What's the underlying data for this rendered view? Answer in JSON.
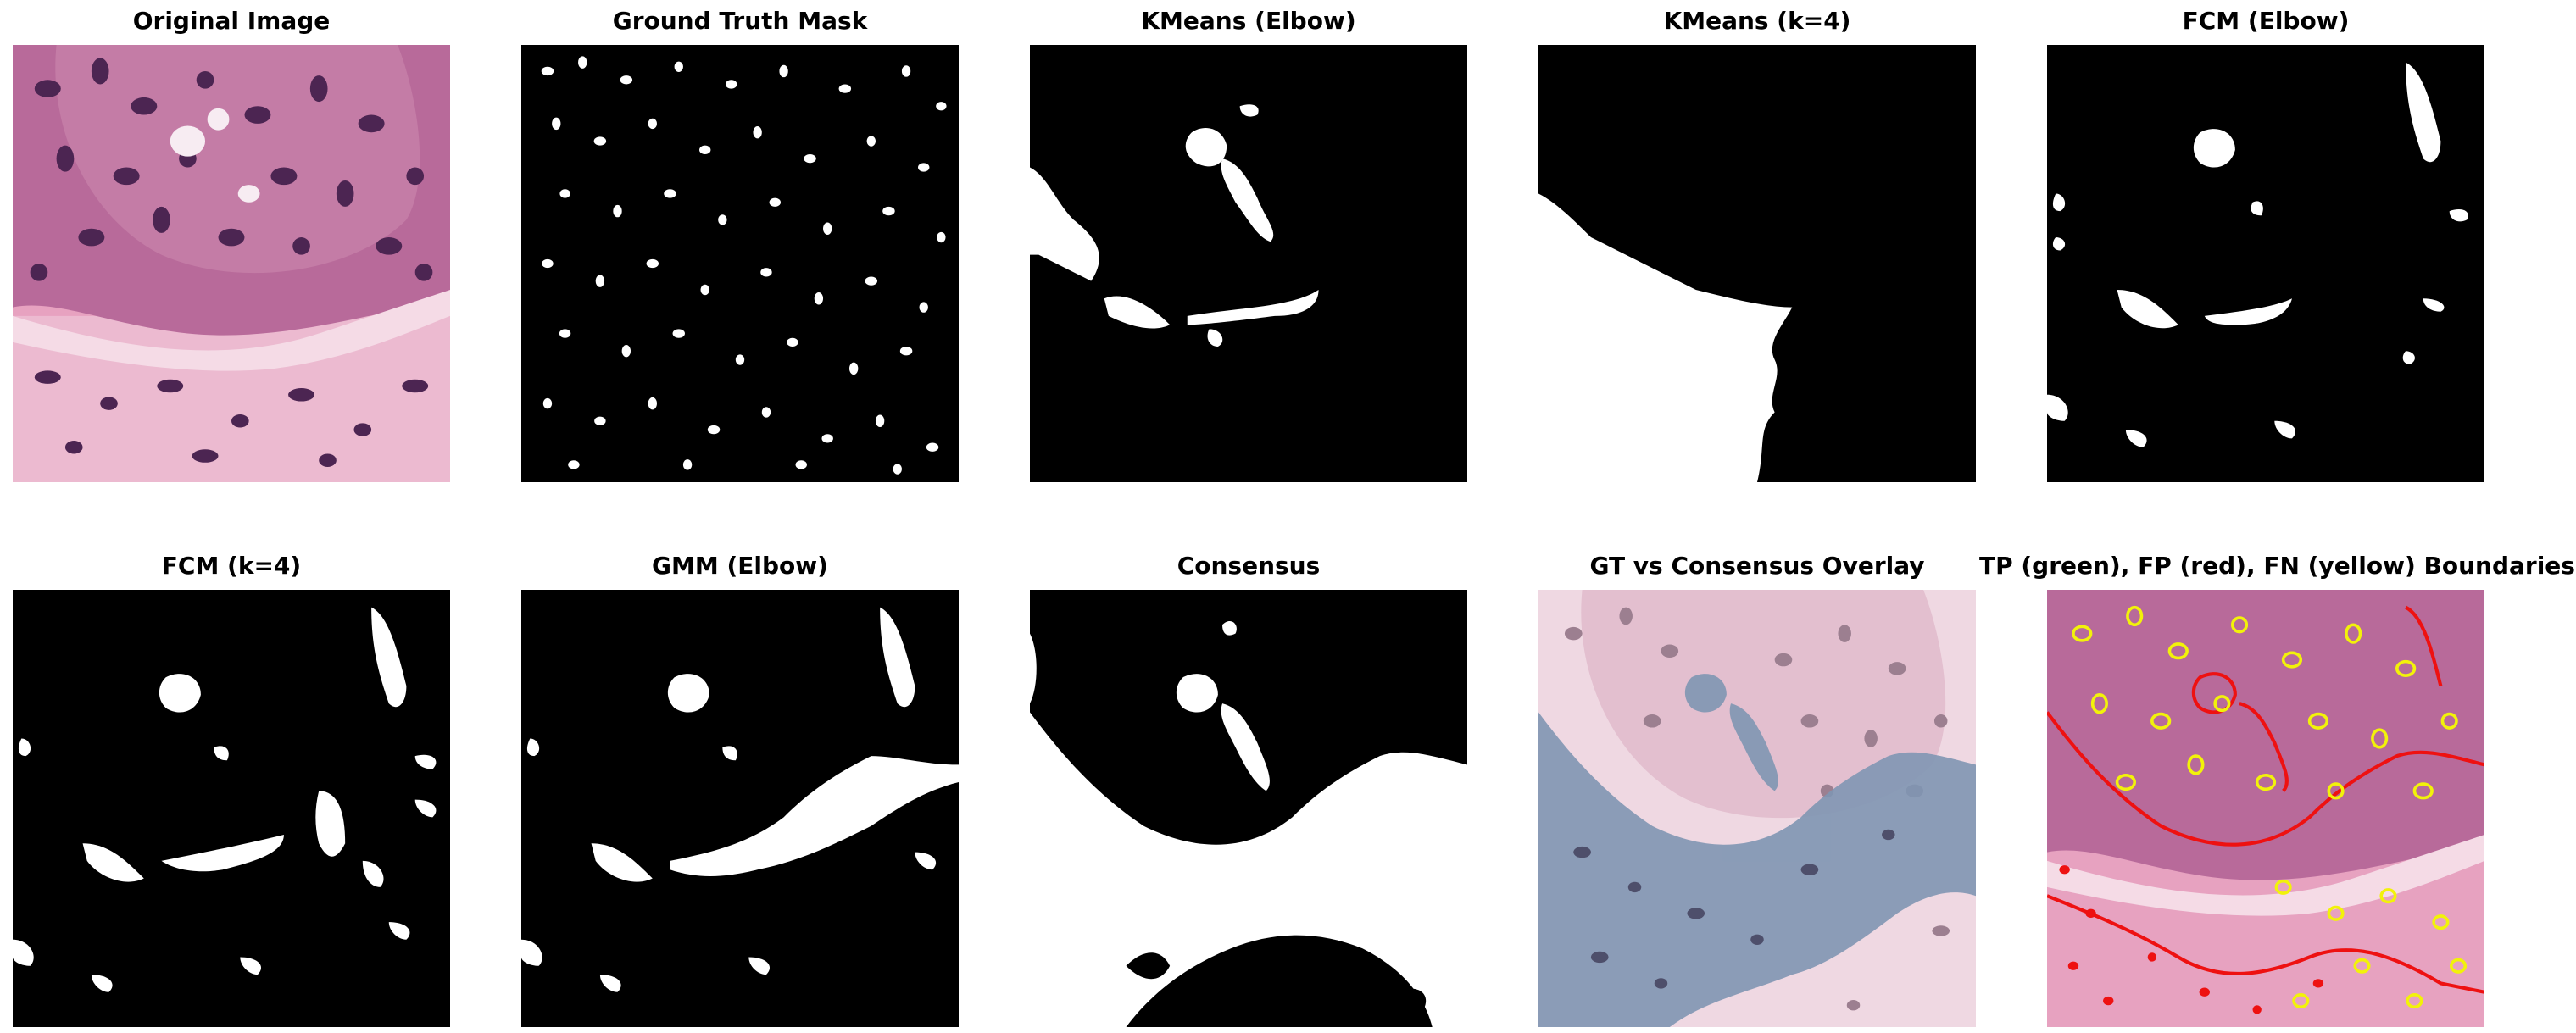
{
  "figure": {
    "panels": [
      {
        "id": "p1",
        "title": "Original Image"
      },
      {
        "id": "p2",
        "title": "Ground Truth Mask"
      },
      {
        "id": "p3",
        "title": "KMeans (Elbow)"
      },
      {
        "id": "p4",
        "title": "KMeans (k=4)"
      },
      {
        "id": "p5",
        "title": "FCM (Elbow)"
      },
      {
        "id": "p6",
        "title": "FCM (k=4)"
      },
      {
        "id": "p7",
        "title": "GMM (Elbow)"
      },
      {
        "id": "p8",
        "title": "Consensus"
      },
      {
        "id": "p9",
        "title": "GT vs Consensus Overlay"
      },
      {
        "id": "p10",
        "title": "TP (green), FP (red), FN (yellow) Boundaries"
      }
    ],
    "colors": {
      "background": "#ffffff",
      "mask_foreground": "#ffffff",
      "mask_background": "#000000",
      "tissue_pink": "#e7a2c0",
      "nucleus_purple": "#5b2f5f",
      "overlay_blue": "#8096b3",
      "fp_red": "#ee1111",
      "fn_yellow": "#f2f20a",
      "tp_green": "#22cc22"
    }
  }
}
